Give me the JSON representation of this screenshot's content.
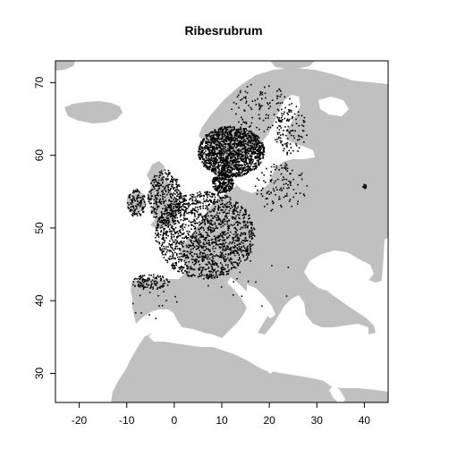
{
  "title": "Ribesrubrum",
  "chart_data": {
    "type": "scatter",
    "title": "Ribesrubrum",
    "xlabel": "",
    "ylabel": "",
    "xlim": [
      -25,
      45
    ],
    "ylim": [
      26,
      73
    ],
    "x_ticks": [
      -20,
      -10,
      0,
      10,
      20,
      30,
      40
    ],
    "y_ticks": [
      30,
      40,
      50,
      60,
      70
    ],
    "x_tick_labels": [
      "-20",
      "-10",
      "0",
      "10",
      "20",
      "30",
      "40"
    ],
    "y_tick_labels": [
      "30",
      "40",
      "50",
      "60",
      "70"
    ],
    "grid": false,
    "basemap": "Europe, North Africa and western Asia landmass in light grey",
    "colors": {
      "land": "#c0c0c0",
      "sea": "#ffffff",
      "points": "#000000",
      "frame": "#000000"
    },
    "occurrence_regions": [
      {
        "region": "Central Europe (France, Benelux, Germany, Switzerland, Austria, Czechia)",
        "lon_range": [
          -4,
          17
        ],
        "lat_range": [
          43,
          55
        ],
        "density": "very high"
      },
      {
        "region": "Great Britain",
        "lon_range": [
          -5.5,
          1.5
        ],
        "lat_range": [
          50.5,
          58
        ],
        "density": "medium"
      },
      {
        "region": "Ireland",
        "lon_range": [
          -10,
          -6
        ],
        "lat_range": [
          51.5,
          55.3
        ],
        "density": "low"
      },
      {
        "region": "Denmark",
        "lon_range": [
          8,
          12.5
        ],
        "lat_range": [
          54.8,
          57.6
        ],
        "density": "high"
      },
      {
        "region": "Southern Scandinavia (Norway and Sweden)",
        "lon_range": [
          5,
          19
        ],
        "lat_range": [
          57,
          64
        ],
        "density": "very high"
      },
      {
        "region": "Northern Scandinavia",
        "lon_range": [
          12,
          25
        ],
        "lat_range": [
          63,
          70
        ],
        "density": "low"
      },
      {
        "region": "Finland",
        "lon_range": [
          21,
          28
        ],
        "lat_range": [
          60,
          67
        ],
        "density": "low"
      },
      {
        "region": "Baltic states and Poland",
        "lon_range": [
          17,
          28
        ],
        "lat_range": [
          52,
          59
        ],
        "density": "low"
      },
      {
        "region": "Iberian Peninsula (north)",
        "lon_range": [
          -9,
          -1
        ],
        "lat_range": [
          41.5,
          43.6
        ],
        "density": "low"
      },
      {
        "region": "Iberian Peninsula (scattered)",
        "lon_range": [
          -9,
          2
        ],
        "lat_range": [
          37,
          41.5
        ],
        "density": "very low"
      },
      {
        "region": "Italy and Balkans (scattered)",
        "lon_range": [
          7,
          28
        ],
        "lat_range": [
          38,
          46
        ],
        "density": "very low"
      },
      {
        "region": "Western Russia (isolated)",
        "lon_range": [
          39.7,
          40.4
        ],
        "lat_range": [
          55.4,
          56.1
        ],
        "density": "very low"
      }
    ]
  }
}
